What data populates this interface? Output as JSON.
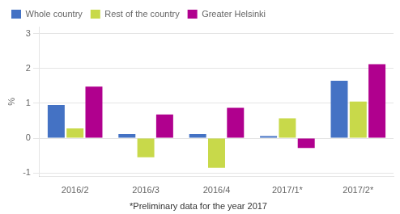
{
  "chart_data": {
    "type": "bar",
    "categories": [
      "2016/2",
      "2016/3",
      "2016/4",
      "2017/1*",
      "2017/2*"
    ],
    "series": [
      {
        "name": "Whole country",
        "color": "#4472C4",
        "values": [
          0.95,
          0.12,
          0.12,
          0.06,
          1.65
        ]
      },
      {
        "name": "Rest of the country",
        "color": "#C8D94A",
        "values": [
          0.28,
          -0.55,
          -0.85,
          0.57,
          1.05
        ]
      },
      {
        "name": "Greater Helsinki",
        "color": "#B0008E",
        "values": [
          1.48,
          0.68,
          0.87,
          -0.28,
          2.12
        ]
      }
    ],
    "ylabel": "%",
    "annotations": [
      "*Preliminary data for the year 2017"
    ],
    "ylim": [
      -1.1,
      3.2
    ],
    "yticks": [
      -1,
      0,
      1,
      2,
      3
    ],
    "grid": true,
    "legend": "upper left"
  }
}
